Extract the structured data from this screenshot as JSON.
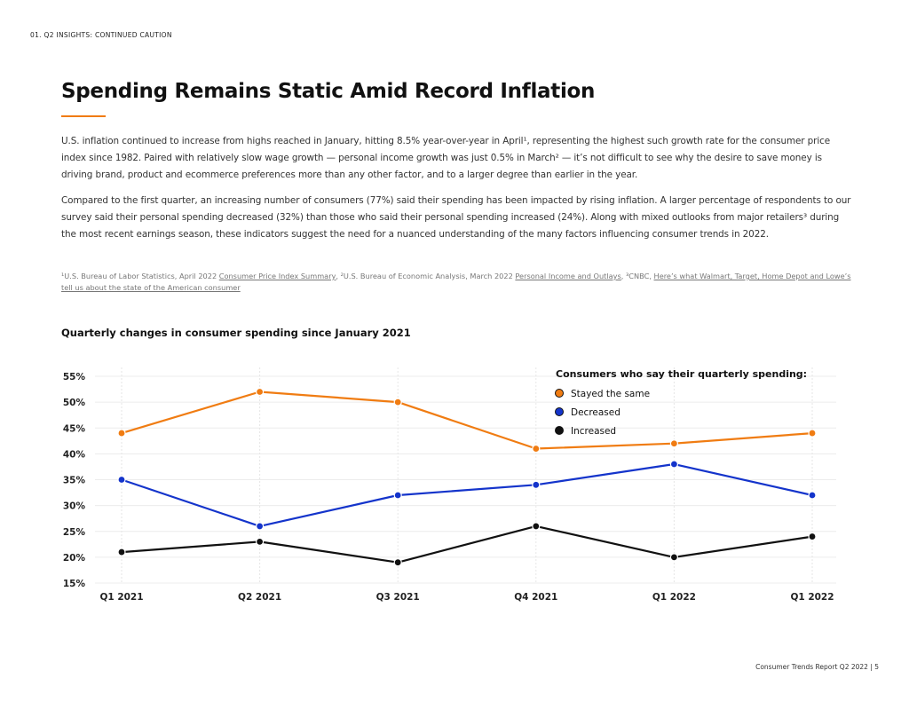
{
  "header": {
    "section": "01. Q2 INSIGHTS: CONTINUED CAUTION"
  },
  "title": "Spending Remains Static Amid Record Inflation",
  "paragraphs": [
    "U.S. inflation continued to increase from highs reached in January, hitting 8.5% year-over-year in April¹, representing the highest such growth rate for the consumer price index since 1982. Paired with relatively slow wage growth — personal income growth was just 0.5% in March² — it’s not difficult to see why the desire to save money is driving brand, product and ecommerce preferences more than any other factor, and to a larger degree than earlier in the year.",
    "Compared to the first quarter, an increasing number of consumers (77%) said their spending has been impacted by rising inflation. A larger percentage of respondents to our survey said their personal spending decreased (32%) than those who said their personal spending increased (24%). Along with mixed outlooks from major retailers³ during the most recent earnings season, these indicators suggest the need for a nuanced understanding of the many factors influencing consumer trends in 2022."
  ],
  "footnotes": {
    "n1": "¹U.S. Bureau of Labor Statistics, April 2022 ",
    "l1": "Consumer Price Index Summary",
    "n2": ", ²U.S. Bureau of Economic Analysis, March 2022 ",
    "l2": "Personal Income and Outlays",
    "n3": ", ³CNBC, ",
    "l3": "Here’s what Walmart, Target, Home Depot and Lowe’s tell us about the state of the American consumer"
  },
  "chart_data": {
    "type": "line",
    "title": "Quarterly changes in consumer spending since January 2021",
    "legend_title": "Consumers who say their quarterly spending:",
    "legend_position": "top-right",
    "categories": [
      "Q1 2021",
      "Q2 2021",
      "Q3 2021",
      "Q4 2021",
      "Q1 2022",
      "Q1 2022"
    ],
    "ylim": [
      15,
      55
    ],
    "yticks": [
      "55%",
      "50%",
      "45%",
      "40%",
      "35%",
      "30%",
      "25%",
      "20%",
      "15%"
    ],
    "grid": true,
    "series": [
      {
        "name": "Stayed the same",
        "color": "#f07c12",
        "values": [
          44,
          52,
          50,
          41,
          42,
          44
        ]
      },
      {
        "name": "Decreased",
        "color": "#1434cb",
        "values": [
          35,
          26,
          32,
          34,
          38,
          32
        ]
      },
      {
        "name": "Increased",
        "color": "#111111",
        "values": [
          21,
          23,
          19,
          26,
          20,
          24
        ]
      }
    ]
  },
  "footer": {
    "text": "Consumer Trends Report Q2 2022  |    5"
  }
}
